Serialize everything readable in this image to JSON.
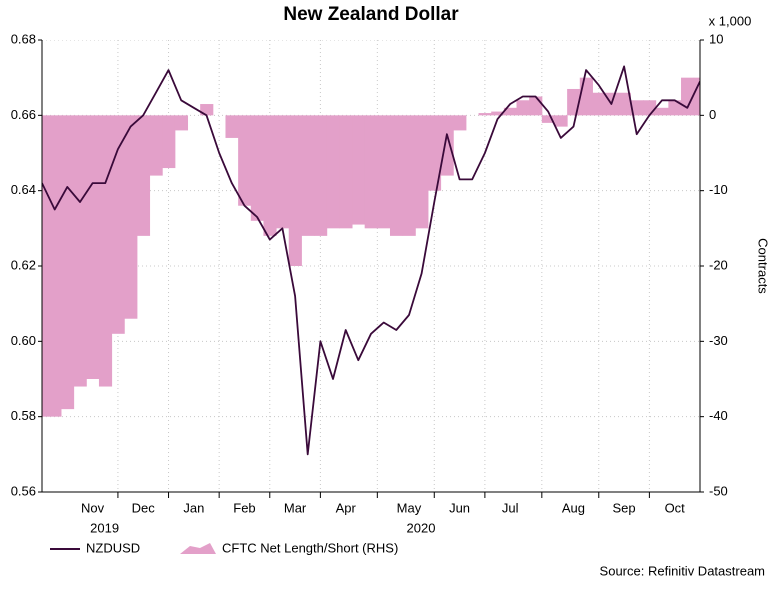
{
  "chart_data": {
    "type": "line-area",
    "title": "New Zealand Dollar",
    "y2_unit": "x 1,000",
    "y2_label": "Contracts",
    "source": "Source: Refinitiv Datastream",
    "categories": [
      null,
      null,
      null,
      null,
      "Nov",
      null,
      null,
      null,
      "Dec",
      null,
      null,
      null,
      "Jan",
      null,
      null,
      null,
      "Feb",
      null,
      null,
      null,
      "Mar",
      null,
      null,
      null,
      "Apr",
      null,
      null,
      null,
      null,
      "May",
      null,
      null,
      null,
      "Jun",
      null,
      null,
      null,
      "Jul",
      null,
      null,
      null,
      null,
      "Aug",
      null,
      null,
      null,
      "Sep",
      null,
      null,
      null,
      "Oct",
      null,
      null
    ],
    "year_labels": [
      {
        "label": "2019",
        "category": "Nov"
      },
      {
        "label": "2020",
        "category": "May"
      }
    ],
    "series": [
      {
        "name": "NZDUSD",
        "color": "#3a0a3a",
        "axis": "y",
        "kind": "line",
        "values": [
          0.642,
          0.635,
          0.641,
          0.637,
          0.642,
          0.642,
          0.651,
          0.657,
          0.66,
          0.666,
          0.672,
          0.664,
          0.662,
          0.66,
          0.65,
          0.642,
          0.636,
          0.633,
          0.627,
          0.63,
          0.612,
          0.57,
          0.6,
          0.59,
          0.603,
          0.595,
          0.602,
          0.605,
          0.603,
          0.607,
          0.618,
          0.637,
          0.655,
          0.643,
          0.643,
          0.65,
          0.659,
          0.663,
          0.665,
          0.665,
          0.661,
          0.654,
          0.657,
          0.672,
          0.668,
          0.663,
          0.673,
          0.655,
          0.66,
          0.664,
          0.664,
          0.662,
          0.669
        ]
      },
      {
        "name": "CFTC Net Length/Short (RHS)",
        "color": "#e3a0c9",
        "axis": "y2",
        "kind": "area",
        "values": [
          -40,
          -40,
          -39,
          -36,
          -35,
          -36,
          -29,
          -27,
          -16,
          -8,
          -7,
          -2,
          0,
          1.5,
          0,
          -3,
          -12,
          -14,
          -16,
          -15,
          -20,
          -16,
          -16,
          -15,
          -15,
          -14.5,
          -15,
          -15,
          -16,
          -16,
          -15,
          -10,
          -8,
          -2,
          0,
          0.3,
          0.5,
          1,
          2,
          2.5,
          -1,
          -1.5,
          3.5,
          5,
          3,
          3,
          3,
          2,
          2,
          1,
          2,
          5,
          5
        ]
      }
    ],
    "ylim": [
      0.56,
      0.68
    ],
    "yticks": [
      0.56,
      0.58,
      {
        "value": 0.6,
        "label": "0.60"
      },
      0.62,
      0.64,
      0.66,
      0.68
    ],
    "y2lim": [
      -50,
      10
    ],
    "y2ticks": [
      -50,
      -40,
      -30,
      -20,
      -10,
      0,
      10
    ],
    "grid": true
  }
}
